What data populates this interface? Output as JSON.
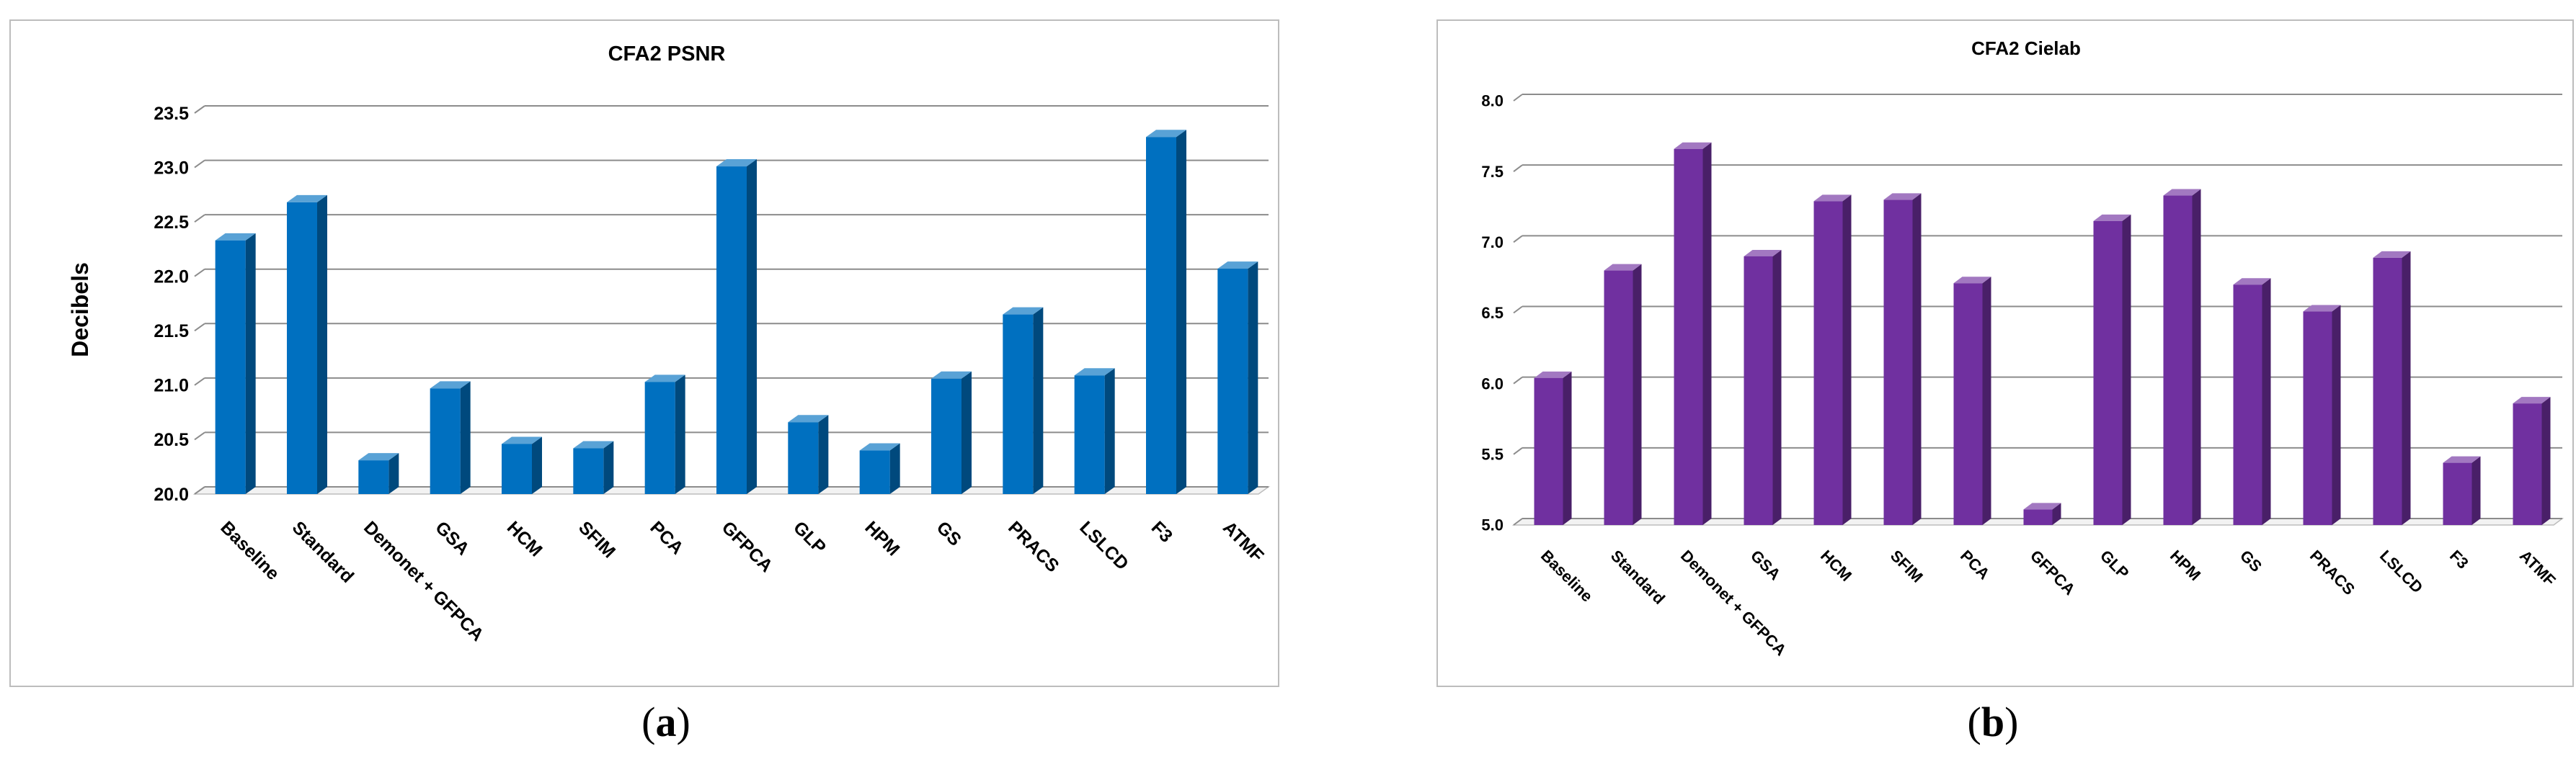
{
  "chart_data": [
    {
      "type": "bar",
      "title": "CFA2 PSNR",
      "ylabel": "Decibels",
      "xlabel": "",
      "ylim": [
        20.0,
        23.5
      ],
      "yticks": [
        "20.0",
        "20.5",
        "21.0",
        "21.5",
        "22.0",
        "22.5",
        "23.0",
        "23.5"
      ],
      "categories": [
        "Baseline",
        "Standard",
        "Demonet + GFPCA",
        "GSA",
        "HCM",
        "SFIM",
        "PCA",
        "GFPCA",
        "GLP",
        "HPM",
        "GS",
        "PRACS",
        "LSLCD",
        "F3",
        "ATMF"
      ],
      "values": [
        22.33,
        22.68,
        20.31,
        20.97,
        20.46,
        20.42,
        21.03,
        23.01,
        20.66,
        20.4,
        21.06,
        21.65,
        21.09,
        23.28,
        22.07
      ],
      "color": "#0070C0",
      "grid": true,
      "legend": "none",
      "caption": "(a)",
      "caption_letter": "a"
    },
    {
      "type": "bar",
      "title": "CFA2 Cielab",
      "ylabel": "",
      "xlabel": "",
      "ylim": [
        5.0,
        8.0
      ],
      "yticks": [
        "5.0",
        "5.5",
        "6.0",
        "6.5",
        "7.0",
        "7.5",
        "8.0"
      ],
      "categories": [
        "Baseline",
        "Standard",
        "Demonet + GFPCA",
        "GSA",
        "HCM",
        "SFIM",
        "PCA",
        "GFPCA",
        "GLP",
        "HPM",
        "GS",
        "PRACS",
        "LSLCD",
        "F3",
        "ATMF"
      ],
      "values": [
        6.04,
        6.8,
        7.66,
        6.9,
        7.29,
        7.3,
        6.71,
        5.11,
        7.15,
        7.33,
        6.7,
        6.51,
        6.89,
        5.44,
        5.86
      ],
      "color": "#7030A0",
      "grid": true,
      "legend": "none",
      "caption": "(b)",
      "caption_letter": "b"
    }
  ]
}
